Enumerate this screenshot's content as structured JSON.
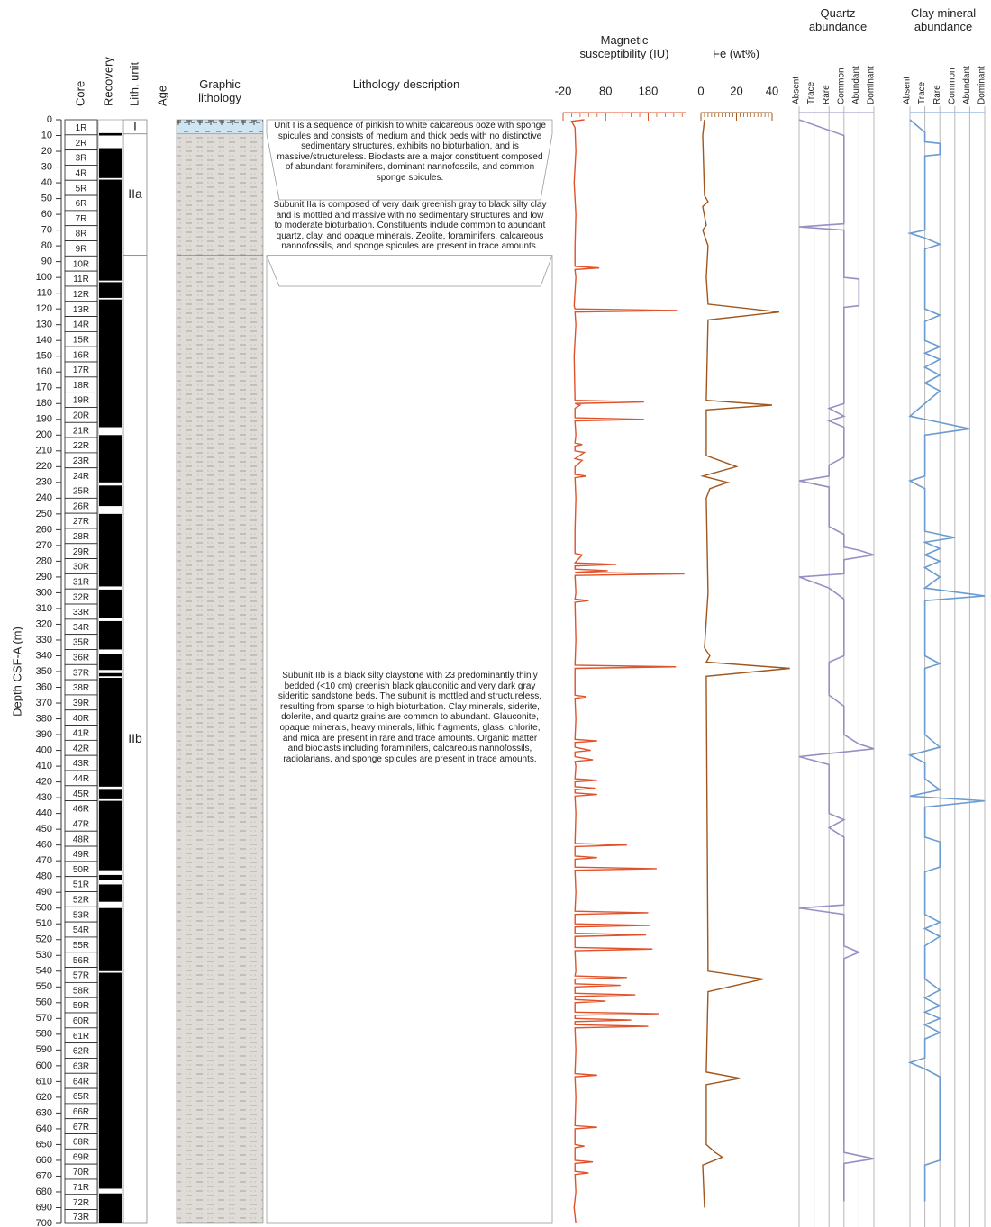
{
  "chart_data": {
    "type": "well-log",
    "y_axis": {
      "label": "Depth CSF-A (m)",
      "ylim": [
        0,
        700
      ],
      "yticks": [
        0,
        10,
        20,
        30,
        40,
        50,
        60,
        70,
        80,
        90,
        100,
        110,
        120,
        130,
        140,
        150,
        160,
        170,
        180,
        190,
        200,
        210,
        220,
        230,
        240,
        250,
        260,
        270,
        280,
        290,
        300,
        310,
        320,
        330,
        340,
        350,
        360,
        370,
        380,
        390,
        400,
        410,
        420,
        430,
        440,
        450,
        460,
        470,
        480,
        490,
        500,
        510,
        520,
        530,
        540,
        550,
        560,
        570,
        580,
        590,
        600,
        610,
        620,
        630,
        640,
        650,
        660,
        670,
        680,
        690,
        700
      ]
    },
    "columns": {
      "core": "Core",
      "recovery": "Recovery",
      "lith_unit": "Lith. unit",
      "age": "Age",
      "graphic": "Graphic lithology",
      "description": "Lithology description"
    },
    "cores": {
      "names": [
        "1R",
        "2R",
        "3R",
        "4R",
        "5R",
        "6R",
        "7R",
        "8R",
        "9R",
        "10R",
        "11R",
        "12R",
        "13R",
        "14R",
        "15R",
        "16R",
        "17R",
        "18R",
        "19R",
        "20R",
        "21R",
        "22R",
        "23R",
        "24R",
        "25R",
        "26R",
        "27R",
        "28R",
        "29R",
        "30R",
        "31R",
        "32R",
        "33R",
        "34R",
        "35R",
        "36R",
        "37R",
        "38R",
        "39R",
        "40R",
        "41R",
        "42R",
        "43R",
        "44R",
        "45R",
        "46R",
        "47R",
        "48R",
        "49R",
        "50R",
        "51R",
        "52R",
        "53R",
        "54R",
        "55R",
        "56R",
        "57R",
        "58R",
        "59R",
        "60R",
        "61R",
        "62R",
        "63R",
        "64R",
        "65R",
        "66R",
        "67R",
        "68R",
        "69R",
        "70R",
        "71R",
        "72R",
        "73R"
      ],
      "tops": [
        0,
        9.6,
        19.2,
        28.8,
        38.4,
        48,
        57.6,
        67.2,
        76.8,
        86.4,
        96,
        105.6,
        115.2,
        124.8,
        134.4,
        144,
        153.6,
        163.2,
        172.8,
        182.4,
        192,
        201.6,
        211.2,
        220.8,
        230.4,
        240,
        249.6,
        259.2,
        268.8,
        278.4,
        288,
        297.6,
        307.2,
        316.8,
        326.4,
        336,
        345.6,
        355.2,
        364.8,
        374.4,
        384,
        393.6,
        403.2,
        412.8,
        422.4,
        432,
        441.6,
        451.2,
        460.8,
        470.4,
        480,
        489.6,
        499.2,
        508.8,
        518.4,
        528,
        537.6,
        547.2,
        556.8,
        566.4,
        576,
        585.6,
        595.2,
        604.8,
        614.4,
        624,
        633.6,
        643.2,
        652.8,
        662.4,
        672,
        681.6,
        691.2
      ]
    },
    "recovery": [
      [
        8.5,
        10
      ],
      [
        18,
        37
      ],
      [
        38,
        102
      ],
      [
        103,
        113
      ],
      [
        114,
        195
      ],
      [
        200,
        230
      ],
      [
        232,
        245
      ],
      [
        250,
        296
      ],
      [
        298,
        316
      ],
      [
        318,
        336
      ],
      [
        339,
        349
      ],
      [
        351,
        353
      ],
      [
        354,
        423
      ],
      [
        425,
        431
      ],
      [
        432,
        476
      ],
      [
        479,
        482
      ],
      [
        485,
        496
      ],
      [
        500,
        540
      ],
      [
        541,
        678
      ],
      [
        681,
        700
      ]
    ],
    "units": [
      {
        "name": "I",
        "top": 0,
        "bottom": 9,
        "color": "#cfe6f2",
        "symbol": "ooze"
      },
      {
        "name": "IIa",
        "top": 9,
        "bottom": 86,
        "color": "#dfdbd6",
        "symbol": "clay"
      },
      {
        "name": "IIb",
        "top": 86,
        "bottom": 700,
        "color": "#dfdbd6",
        "symbol": "clay"
      }
    ],
    "descriptions": [
      "Unit I is a sequence of pinkish to white calcareous ooze with sponge spicules and consists of medium and thick beds with no distinctive sedimentary structures, exhibits no bioturbation, and is massive/structureless. Bioclasts are a major constituent composed of abundant foraminifers, dominant nannofossils, and common sponge spicules.",
      "Subunit IIa is composed of very dark greenish gray to black silty clay and is mottled and massive with no sedimentary structures and low to moderate bioturbation. Constituents include common to abundant quartz, clay, and opaque minerals. Zeolite, foraminifers, calcareous nannofossils, and sponge spicules are present in trace amounts.",
      "Subunit IIb is a black silty claystone with 23 predominantly thinly bedded (<10 cm) greenish black glauconitic and very dark gray sideritic sandstone beds. The subunit is mottled and structureless, resulting from sparse to high bioturbation. Clay minerals, siderite, dolerite, and quartz grains are common to abundant. Glauconite, opaque minerals, heavy minerals, lithic fragments, glass, chlorite, and mica are present in rare and trace amounts. Organic matter and bioclasts including foraminifers, calcareous nannofossils, radiolarians, and sponge spicules are present in trace amounts."
    ],
    "logs": [
      {
        "title": "Magnetic susceptibility (IU)",
        "color": "#e0522a",
        "xlim": [
          -20,
          270
        ],
        "xticks": [
          -20,
          80,
          180
        ],
        "minor_ticks": [
          -20,
          0,
          20,
          40,
          60,
          80,
          100,
          120,
          140,
          160,
          180,
          200,
          220,
          240,
          260
        ],
        "depth": [
          0,
          1,
          5,
          20,
          40,
          60,
          80,
          93,
          94,
          95,
          100,
          118,
          120,
          121,
          122,
          130,
          150,
          178,
          179,
          180,
          181,
          183,
          189,
          190,
          191,
          200,
          205,
          206,
          207,
          210,
          211,
          215,
          216,
          220,
          225,
          226,
          227,
          240,
          260,
          275,
          276,
          281,
          282,
          283,
          285,
          286,
          287,
          288,
          289,
          300,
          304,
          305,
          306,
          330,
          346,
          347,
          348,
          365,
          366,
          367,
          380,
          393,
          394,
          395,
          398,
          400,
          401,
          404,
          406,
          407,
          410,
          418,
          419,
          420,
          423,
          424,
          425,
          427,
          428,
          429,
          440,
          459,
          460,
          461,
          467,
          468,
          469,
          474,
          475,
          476,
          490,
          502,
          503,
          504,
          510,
          511,
          512,
          516,
          517,
          518,
          525,
          526,
          527,
          540,
          543,
          544,
          545,
          548,
          549,
          550,
          554,
          555,
          556,
          558,
          559,
          560,
          566,
          567,
          568,
          570,
          571,
          572,
          574,
          575,
          576,
          590,
          605,
          606,
          607,
          620,
          638,
          639,
          640,
          650,
          651,
          652,
          660,
          661,
          662,
          667,
          668,
          669,
          680,
          690,
          700
        ],
        "values": [
          30,
          0,
          8,
          10,
          6,
          10,
          8,
          8,
          65,
          8,
          10,
          6,
          8,
          250,
          8,
          10,
          6,
          8,
          170,
          8,
          20,
          8,
          8,
          170,
          8,
          10,
          8,
          25,
          8,
          8,
          30,
          8,
          25,
          8,
          8,
          35,
          8,
          10,
          8,
          8,
          25,
          8,
          105,
          8,
          8,
          85,
          8,
          265,
          8,
          10,
          8,
          40,
          8,
          10,
          8,
          245,
          8,
          8,
          35,
          8,
          10,
          8,
          60,
          8,
          8,
          45,
          8,
          8,
          50,
          8,
          10,
          8,
          60,
          8,
          8,
          55,
          8,
          8,
          60,
          8,
          10,
          8,
          130,
          8,
          8,
          60,
          8,
          8,
          200,
          8,
          10,
          8,
          180,
          8,
          8,
          185,
          8,
          8,
          175,
          8,
          8,
          190,
          8,
          10,
          8,
          130,
          8,
          8,
          115,
          8,
          8,
          150,
          8,
          8,
          80,
          8,
          8,
          205,
          8,
          8,
          140,
          8,
          8,
          180,
          8,
          10,
          8,
          60,
          8,
          10,
          8,
          60,
          8,
          8,
          30,
          8,
          8,
          50,
          8,
          8,
          40,
          8,
          10,
          6,
          10
        ]
      },
      {
        "title": "Fe (wt%)",
        "color": "#a0561c",
        "xlim": [
          0,
          40
        ],
        "xticks": [
          0,
          20,
          40
        ],
        "minor_ticks": [
          0,
          2,
          4,
          6,
          8,
          10,
          12,
          14,
          16,
          18,
          20,
          22,
          24,
          26,
          28,
          30,
          32,
          34,
          36,
          38,
          40
        ],
        "depth": [
          0,
          10,
          48,
          52,
          55,
          67,
          70,
          80,
          100,
          117,
          122,
          127,
          178,
          181,
          184,
          213,
          220,
          226,
          230,
          234,
          240,
          300,
          335,
          340,
          344,
          348,
          353,
          540,
          545,
          553,
          604,
          608,
          612,
          650,
          655,
          658,
          663,
          690
        ],
        "values": [
          2,
          1,
          2,
          4,
          1,
          3,
          1,
          4,
          3,
          4,
          44,
          4,
          3,
          40,
          3,
          3,
          20,
          1,
          15,
          5,
          3,
          4,
          2,
          5,
          3,
          50,
          3,
          4,
          35,
          4,
          3,
          22,
          3,
          3,
          8,
          12,
          1,
          2
        ]
      },
      {
        "title": "Quartz abundance",
        "color": "#9a8ec4",
        "xlim": [
          0,
          5
        ],
        "xticks": [
          {
            "value": 0,
            "label": "Absent"
          },
          {
            "value": 1,
            "label": "Trace"
          },
          {
            "value": 2,
            "label": "Rare"
          },
          {
            "value": 3,
            "label": "Common"
          },
          {
            "value": 4,
            "label": "Abundant"
          },
          {
            "value": 5,
            "label": "Dominant"
          }
        ],
        "depth": [
          0,
          10,
          66,
          68,
          70,
          100,
          101,
          118,
          119,
          180,
          183,
          188,
          191,
          195,
          214,
          219,
          226,
          229,
          233,
          258,
          263,
          271,
          273,
          276,
          279,
          288,
          290,
          297,
          304,
          340,
          344,
          365,
          372,
          390,
          396,
          399,
          404,
          409,
          440,
          444,
          449,
          455,
          498,
          500,
          504,
          524,
          528,
          532,
          655,
          659,
          662,
          686
        ],
        "values": [
          0,
          3,
          3,
          0,
          3,
          3,
          4,
          4,
          3,
          3,
          2,
          3,
          2,
          3,
          3,
          2,
          2,
          0,
          2,
          2,
          3,
          3,
          4,
          5,
          3,
          3,
          0,
          2,
          3,
          3,
          2,
          2,
          3,
          3,
          4,
          5,
          0,
          2,
          2,
          3,
          2,
          3,
          3,
          0,
          3,
          3,
          4,
          3,
          3,
          5,
          3,
          3
        ]
      },
      {
        "title": "Clay mineral abundance",
        "color": "#6a9bd1",
        "xlim": [
          0,
          5
        ],
        "xticks": [
          {
            "value": 0,
            "label": "Absent"
          },
          {
            "value": 1,
            "label": "Trace"
          },
          {
            "value": 2,
            "label": "Rare"
          },
          {
            "value": 3,
            "label": "Common"
          },
          {
            "value": 4,
            "label": "Abundant"
          },
          {
            "value": 5,
            "label": "Dominant"
          }
        ],
        "depth": [
          0,
          8,
          14,
          15,
          22,
          23,
          70,
          72,
          75,
          79,
          82,
          120,
          124,
          128,
          140,
          144,
          148,
          152,
          157,
          162,
          167,
          172,
          180,
          188,
          192,
          196,
          200,
          226,
          229,
          234,
          261,
          265,
          268,
          272,
          276,
          280,
          284,
          290,
          297,
          302,
          305,
          340,
          345,
          348,
          390,
          398,
          403,
          408,
          418,
          425,
          429,
          432,
          436,
          455,
          458,
          474,
          477,
          504,
          509,
          513,
          518,
          524,
          545,
          552,
          557,
          562,
          566,
          570,
          574,
          579,
          583,
          595,
          598,
          602,
          607,
          660,
          663,
          686
        ],
        "values": [
          0,
          1,
          1,
          2,
          2,
          1,
          1,
          0,
          1,
          2,
          1,
          1,
          2,
          1,
          1,
          2,
          1,
          2,
          1,
          2,
          1,
          2,
          1,
          0,
          2,
          4,
          1,
          1,
          0,
          1,
          1,
          3,
          1,
          2,
          1,
          2,
          1,
          2,
          1,
          5,
          1,
          1,
          2,
          1,
          1,
          2,
          0,
          1,
          1,
          2,
          0,
          5,
          1,
          1,
          2,
          2,
          1,
          1,
          2,
          1,
          2,
          1,
          1,
          2,
          1,
          2,
          1,
          2,
          1,
          2,
          1,
          1,
          0,
          1,
          2,
          2,
          1,
          1
        ]
      }
    ]
  }
}
